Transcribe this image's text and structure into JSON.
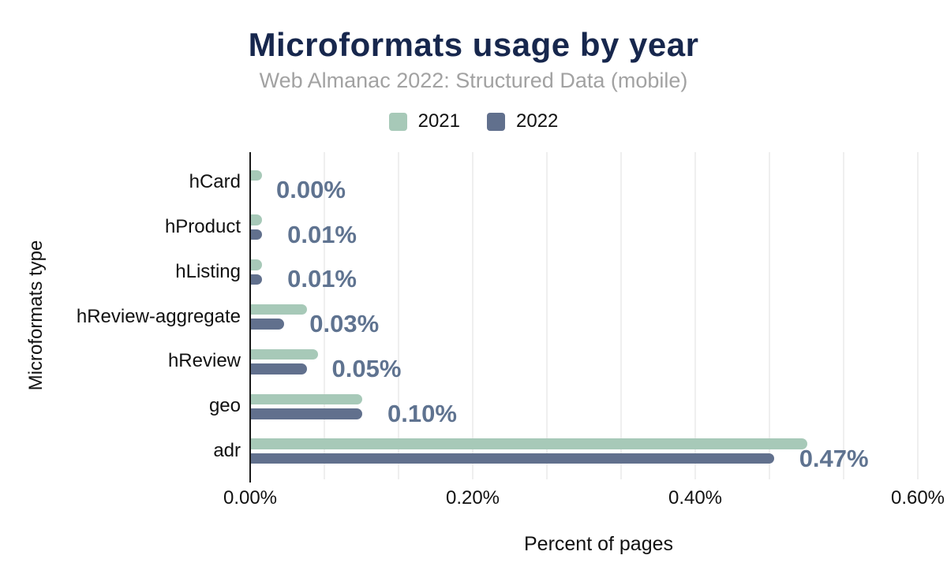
{
  "header": {
    "title": "Microformats usage by year",
    "subtitle": "Web Almanac 2022: Structured Data (mobile)"
  },
  "colors": {
    "title": "#17274d",
    "subtitle": "#a2a2a2",
    "series_2021": "#a7c9b8",
    "series_2022": "#61708d",
    "data_label": "#5f7390",
    "gridline": "#efefef",
    "axis_line": "#1a1a1a",
    "background": "#ffffff"
  },
  "chart_data": {
    "type": "bar",
    "orientation": "horizontal",
    "title": "Microformats usage by year",
    "subtitle": "Web Almanac 2022: Structured Data (mobile)",
    "categories": [
      "hCard",
      "hProduct",
      "hListing",
      "hReview-aggregate",
      "hReview",
      "geo",
      "adr"
    ],
    "series": [
      {
        "name": "2021",
        "color": "#a7c9b8",
        "values": [
          0.01,
          0.01,
          0.01,
          0.05,
          0.06,
          0.1,
          0.5
        ]
      },
      {
        "name": "2022",
        "color": "#61708d",
        "values": [
          0.0,
          0.01,
          0.01,
          0.03,
          0.05,
          0.1,
          0.47
        ]
      }
    ],
    "data_labels": [
      "0.00%",
      "0.01%",
      "0.01%",
      "0.03%",
      "0.05%",
      "0.10%",
      "0.47%"
    ],
    "data_labels_series": "2022",
    "xlabel": "Percent of pages",
    "ylabel": "Microformats type",
    "x_ticks": [
      "0.00%",
      "0.20%",
      "0.40%",
      "0.60%"
    ],
    "x_tick_values": [
      0.0,
      0.2,
      0.4,
      0.6
    ],
    "xlim": [
      0,
      0.6
    ],
    "grid": "vertical",
    "legend_position": "top"
  }
}
